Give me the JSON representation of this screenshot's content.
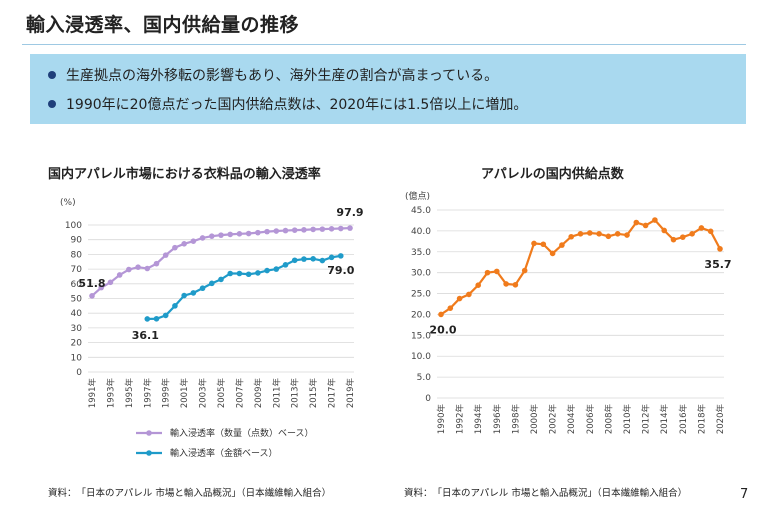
{
  "page": {
    "title": "輸入浸透率、国内供給量の推移",
    "bullets": [
      "生産拠点の海外移転の影響もあり、海外生産の割合が高まっている。",
      "1990年に20億点だった国内供給点数は、2020年には1.5倍以上に増加。"
    ],
    "page_number": "7",
    "colors": {
      "summary_bg": "#a9d9ef",
      "bullet": "#1f3f7a",
      "series_quantity": "#b496d6",
      "series_value": "#1f9bc9",
      "series_supply": "#f07b1c"
    }
  },
  "chart_data": [
    {
      "type": "line",
      "title": "国内アパレル市場における衣料品の輸入浸透率",
      "ylabel": "(%)",
      "xlabel": "",
      "ylim": [
        0,
        100
      ],
      "y_ticks": [
        "0",
        "10",
        "20",
        "30",
        "40",
        "50",
        "60",
        "70",
        "80",
        "90",
        "100"
      ],
      "x": [
        "1991年",
        "1992年",
        "1993年",
        "1994年",
        "1995年",
        "1996年",
        "1997年",
        "1998年",
        "1999年",
        "2000年",
        "2001年",
        "2002年",
        "2003年",
        "2004年",
        "2005年",
        "2006年",
        "2007年",
        "2008年",
        "2009年",
        "2010年",
        "2011年",
        "2012年",
        "2013年",
        "2014年",
        "2015年",
        "2016年",
        "2017年",
        "2018年",
        "2019年"
      ],
      "x_tick_labels": [
        "1991年",
        "1993年",
        "1995年",
        "1997年",
        "1999年",
        "2001年",
        "2003年",
        "2005年",
        "2007年",
        "2009年",
        "2011年",
        "2013年",
        "2015年",
        "2017年",
        "2019年"
      ],
      "grid": true,
      "legend_position": "bottom",
      "series": [
        {
          "name": "輸入浸透率（数量（点数）ベース）",
          "color": "#b496d6",
          "values": [
            51.8,
            57.4,
            61.0,
            66.0,
            69.7,
            71.3,
            70.4,
            73.7,
            79.5,
            84.6,
            87.2,
            89.0,
            91.2,
            92.4,
            93.1,
            93.6,
            94.0,
            94.2,
            94.8,
            95.5,
            95.9,
            96.2,
            96.5,
            96.7,
            97.0,
            97.2,
            97.4,
            97.6,
            97.9
          ]
        },
        {
          "name": "輸入浸透率（金額ベース）",
          "color": "#1f9bc9",
          "values": [
            null,
            null,
            null,
            null,
            null,
            null,
            36.1,
            36.2,
            38.5,
            45.0,
            52.0,
            53.8,
            57.0,
            60.3,
            63.0,
            67.0,
            67.0,
            66.5,
            67.4,
            69.0,
            70.0,
            72.9,
            76.0,
            76.8,
            77.0,
            75.8,
            78.0,
            79.0,
            null
          ]
        }
      ],
      "annotations": [
        "51.8",
        "97.9",
        "36.1",
        "79.0"
      ]
    },
    {
      "type": "line",
      "title": "アパレルの国内供給点数",
      "ylabel": "(億点)",
      "xlabel": "",
      "ylim": [
        0,
        45
      ],
      "y_ticks": [
        "0",
        "5.0",
        "10.0",
        "15.0",
        "20.0",
        "25.0",
        "30.0",
        "35.0",
        "40.0",
        "45.0"
      ],
      "x": [
        "1990年",
        "1991年",
        "1992年",
        "1993年",
        "1994年",
        "1995年",
        "1996年",
        "1997年",
        "1998年",
        "1999年",
        "2000年",
        "2001年",
        "2002年",
        "2003年",
        "2004年",
        "2005年",
        "2006年",
        "2007年",
        "2008年",
        "2009年",
        "2010年",
        "2011年",
        "2012年",
        "2013年",
        "2014年",
        "2015年",
        "2016年",
        "2017年",
        "2018年",
        "2019年",
        "2020年"
      ],
      "x_tick_labels": [
        "1990年",
        "1992年",
        "1994年",
        "1996年",
        "1998年",
        "2000年",
        "2002年",
        "2004年",
        "2006年",
        "2008年",
        "2010年",
        "2012年",
        "2014年",
        "2016年",
        "2018年",
        "2020年"
      ],
      "grid": true,
      "series": [
        {
          "name": "",
          "color": "#f07b1c",
          "values": [
            20.0,
            21.5,
            23.8,
            24.8,
            27.0,
            30.0,
            30.3,
            27.3,
            27.1,
            30.5,
            37.0,
            36.8,
            34.6,
            36.6,
            38.6,
            39.3,
            39.5,
            39.3,
            38.7,
            39.3,
            39.0,
            42.0,
            41.3,
            42.6,
            40.1,
            37.9,
            38.5,
            39.3,
            40.7,
            39.9,
            35.7
          ]
        }
      ],
      "annotations": [
        "20.0",
        "35.7"
      ]
    }
  ],
  "sources": [
    "資料：　「日本のアパレル 市場と輸入品概況」（日本繊維輸入組合）",
    "資料：　「日本のアパレル 市場と輸入品概況」（日本繊維輸入組合）"
  ]
}
